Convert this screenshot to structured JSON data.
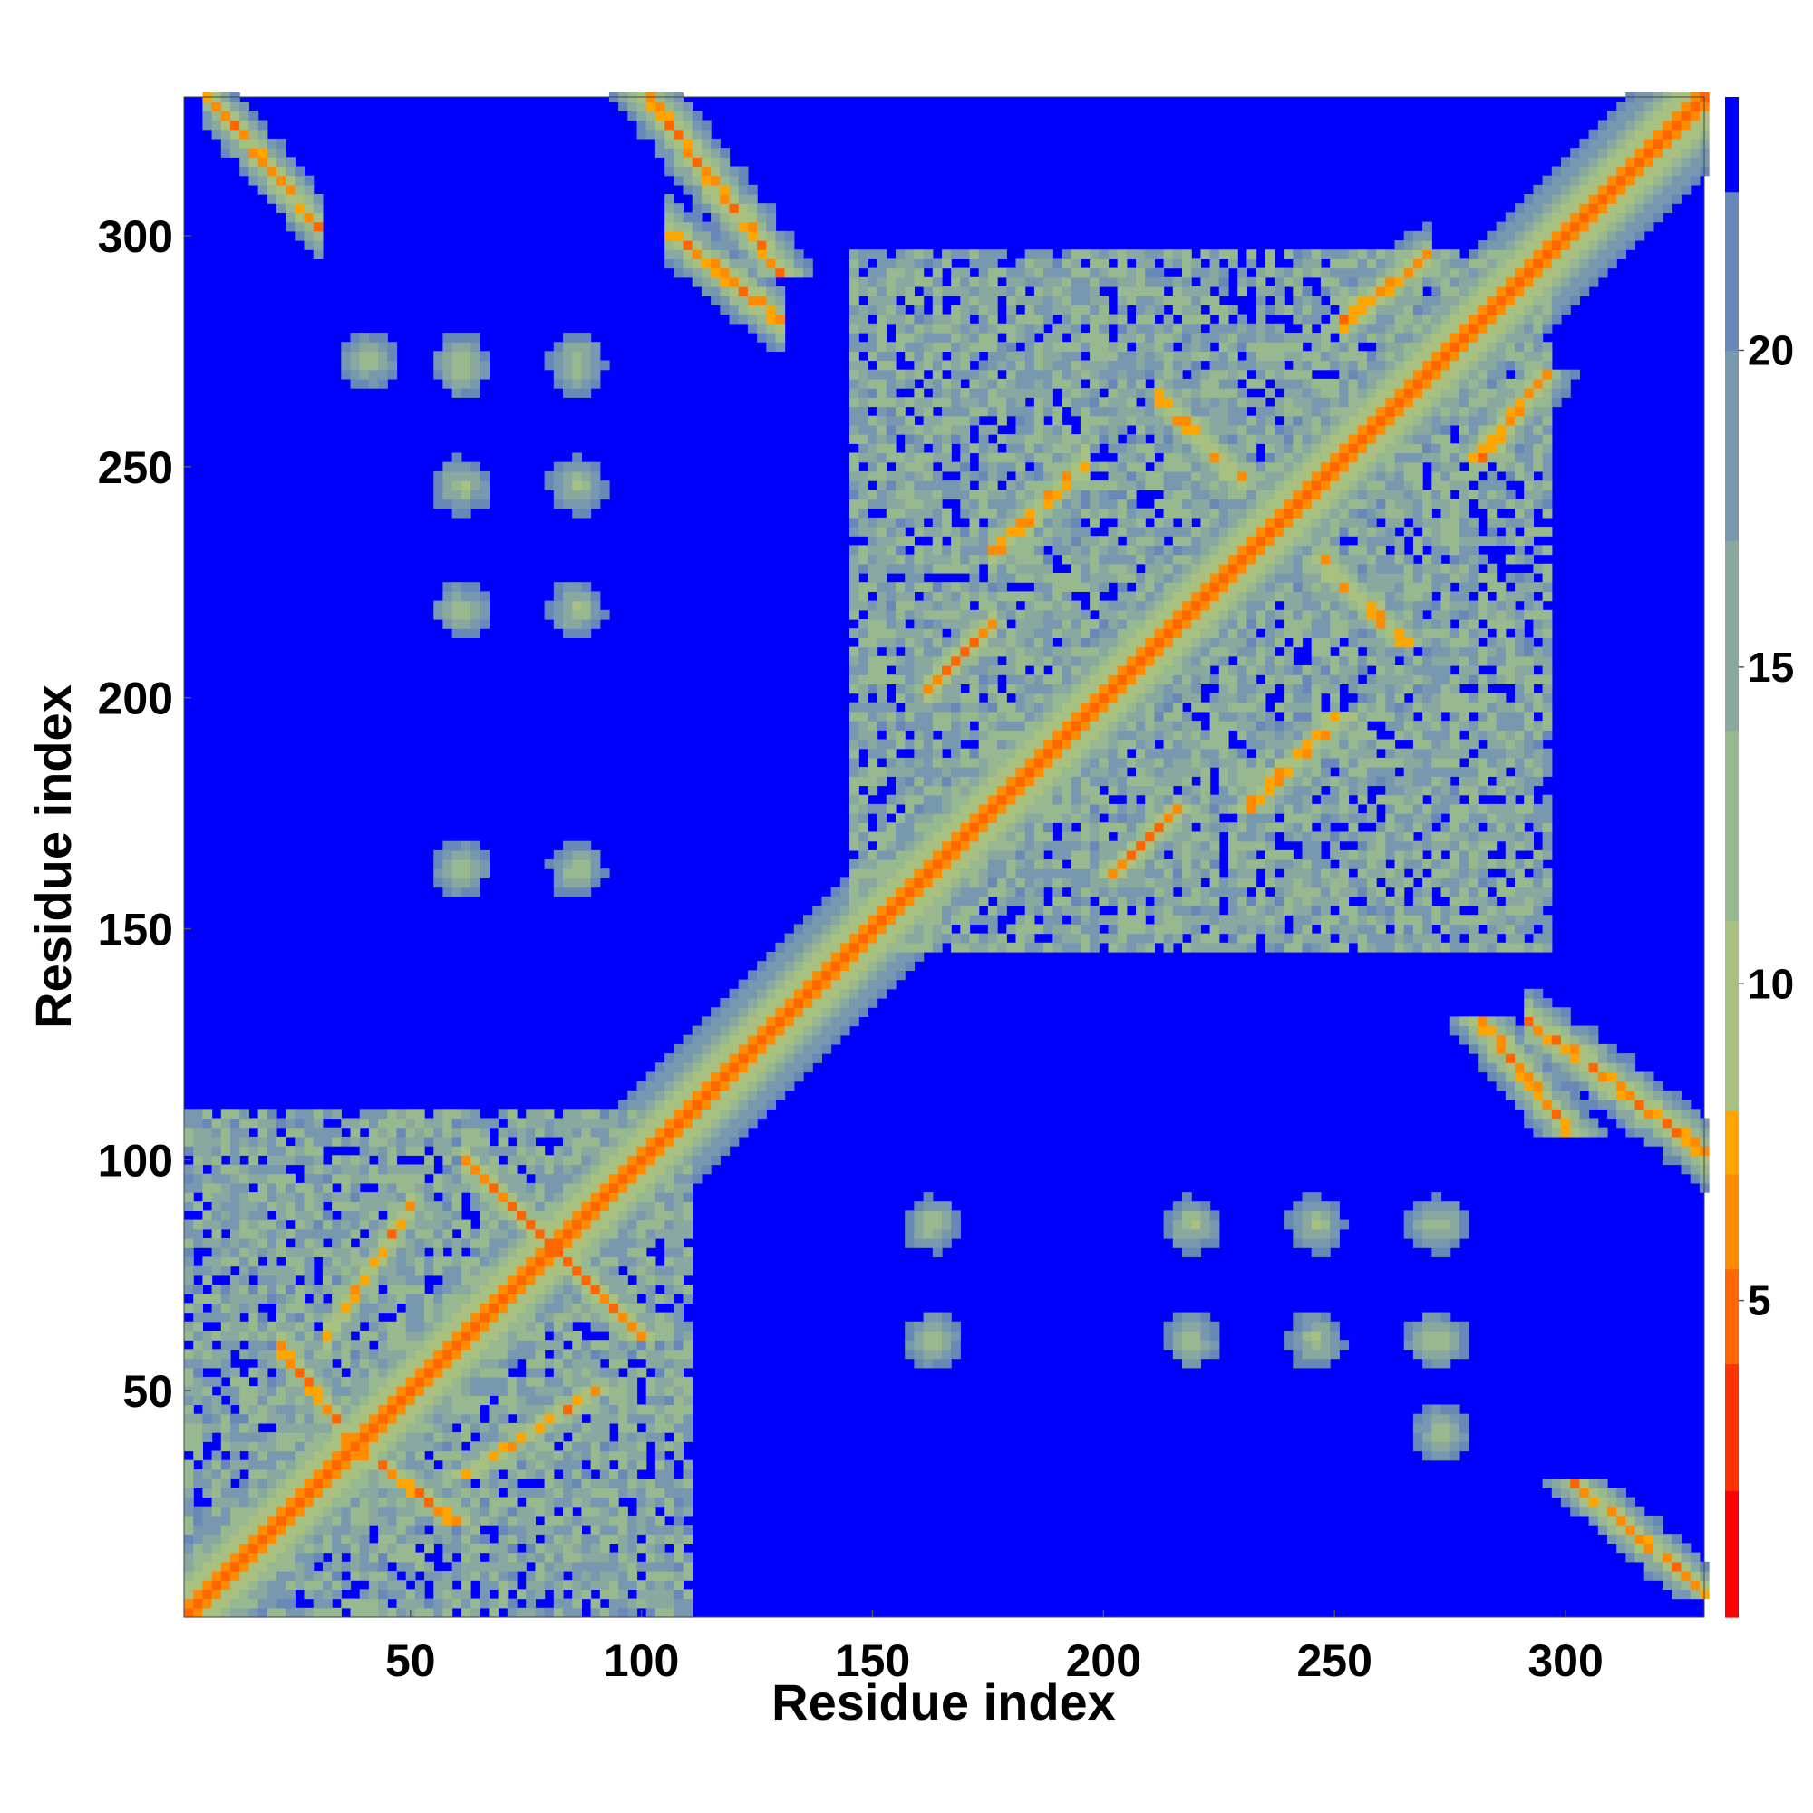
{
  "chart_data": {
    "type": "heatmap",
    "title": "",
    "xlabel": "Residue index",
    "ylabel": "Residue index",
    "xlim": [
      1,
      330
    ],
    "ylim": [
      1,
      330
    ],
    "x_ticks": [
      50,
      100,
      150,
      200,
      250,
      300
    ],
    "y_ticks": [
      50,
      100,
      150,
      200,
      250,
      300
    ],
    "colorbar": {
      "range": [
        0,
        24
      ],
      "ticks": [
        5,
        10,
        15,
        20
      ],
      "levels": [
        {
          "from": 0,
          "to": 2,
          "color": "#ff0000"
        },
        {
          "from": 2,
          "to": 4,
          "color": "#ff3300"
        },
        {
          "from": 4,
          "to": 5.5,
          "color": "#ff6600"
        },
        {
          "from": 5.5,
          "to": 7,
          "color": "#ff8c00"
        },
        {
          "from": 7,
          "to": 8,
          "color": "#ffa500"
        },
        {
          "from": 8,
          "to": 11,
          "color": "#a8c080"
        },
        {
          "from": 11,
          "to": 14,
          "color": "#98b890"
        },
        {
          "from": 14,
          "to": 17,
          "color": "#88a8a0"
        },
        {
          "from": 17,
          "to": 20,
          "color": "#7898b0"
        },
        {
          "from": 20,
          "to": 22.5,
          "color": "#6888b8"
        },
        {
          "from": 22.5,
          "to": 24,
          "color": "#0000ff"
        }
      ]
    },
    "description_hint": "Symmetric residue-residue distance map (Angstrom). Red diagonal = close contacts; blue = distances >= 22.5.",
    "features": {
      "domain_blocks": [
        {
          "start": 1,
          "end": 110
        },
        {
          "start": 145,
          "end": 295
        }
      ],
      "off_diagonal_bands": [
        {
          "x": [
            20,
            35
          ],
          "y": [
            40,
            60
          ],
          "kind": "antiparallel"
        },
        {
          "x": [
            30,
            50
          ],
          "y": [
            60,
            90
          ],
          "kind": "parallel"
        },
        {
          "x": [
            60,
            80
          ],
          "y": [
            80,
            100
          ],
          "kind": "antiparallel"
        },
        {
          "x": [
            160,
            175
          ],
          "y": [
            200,
            215
          ],
          "kind": "parallel"
        },
        {
          "x": [
            175,
            195
          ],
          "y": [
            230,
            250
          ],
          "kind": "parallel"
        },
        {
          "x": [
            210,
            230
          ],
          "y": [
            245,
            265
          ],
          "kind": "antiparallel"
        },
        {
          "x": [
            250,
            270
          ],
          "y": [
            280,
            295
          ],
          "kind": "parallel"
        },
        {
          "x": [
            105,
            130
          ],
          "y": [
            280,
            300
          ],
          "kind": "antiparallel"
        },
        {
          "x": [
            290,
            330
          ],
          "y": [
            100,
            130
          ],
          "kind": "antiparallel"
        },
        {
          "x": [
            5,
            30
          ],
          "y": [
            300,
            330
          ],
          "kind": "antiparallel"
        }
      ],
      "spots": [
        {
          "x": 60,
          "y": 270
        },
        {
          "x": 60,
          "y": 245
        },
        {
          "x": 60,
          "y": 218
        },
        {
          "x": 85,
          "y": 270
        },
        {
          "x": 85,
          "y": 245
        },
        {
          "x": 85,
          "y": 218
        },
        {
          "x": 85,
          "y": 162
        },
        {
          "x": 40,
          "y": 272
        },
        {
          "x": 60,
          "y": 162
        },
        {
          "x": 245,
          "y": 85
        },
        {
          "x": 272,
          "y": 85
        },
        {
          "x": 218,
          "y": 85
        },
        {
          "x": 245,
          "y": 60
        },
        {
          "x": 272,
          "y": 60
        },
        {
          "x": 218,
          "y": 60
        },
        {
          "x": 162,
          "y": 85
        },
        {
          "x": 162,
          "y": 60
        },
        {
          "x": 272,
          "y": 40
        }
      ]
    }
  }
}
